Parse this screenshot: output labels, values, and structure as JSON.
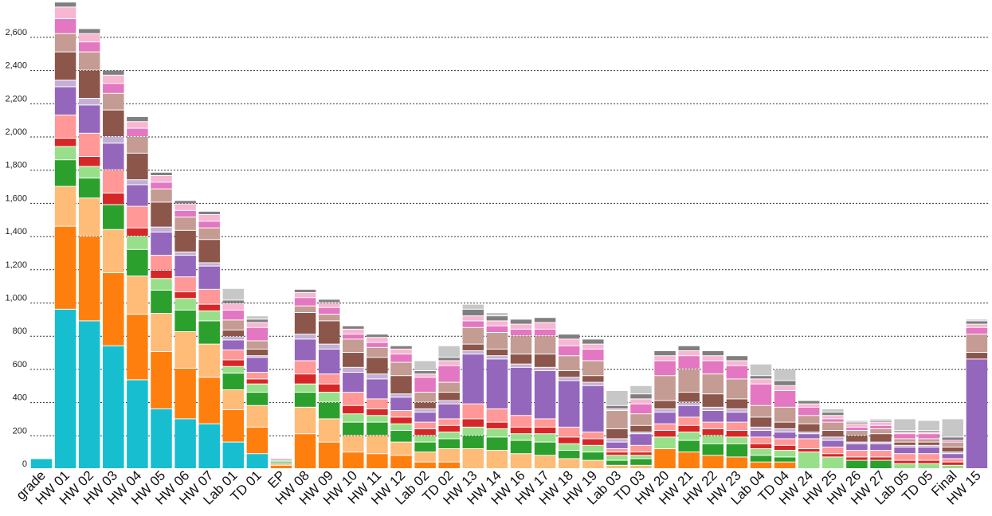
{
  "chart_data": {
    "type": "bar",
    "stacked": true,
    "title": "",
    "xlabel": "",
    "ylabel": "",
    "ylim": [
      0,
      2650
    ],
    "yticks": [
      0,
      200,
      400,
      600,
      800,
      1000,
      1200,
      1400,
      1600,
      1800,
      2000,
      2200,
      2400,
      2600
    ],
    "ytick_labels": [
      "0",
      "200",
      "400",
      "600",
      "800",
      "1,000",
      "1,200",
      "1,400",
      "1,600",
      "1,800",
      "2,000",
      "2,200",
      "2,400",
      "2,600"
    ],
    "grid": true,
    "legend": "none",
    "categories": [
      "grade",
      "HW 01",
      "HW 02",
      "HW 03",
      "HW 04",
      "HW 05",
      "HW 06",
      "HW 07",
      "Lab 01",
      "TD 01",
      "EP",
      "HW 08",
      "HW 09",
      "HW 10",
      "HW 11",
      "HW 12",
      "Lab 02",
      "TD 02",
      "HW 13",
      "HW 14",
      "HW 16",
      "HW 17",
      "HW 18",
      "HW 19",
      "Lab 03",
      "TD 03",
      "HW 20",
      "HW 21",
      "HW 22",
      "HW 23",
      "Lab 04",
      "TD 04",
      "HW 24",
      "HW 25",
      "HW 26",
      "HW 27",
      "Lab 05",
      "TD 05",
      "Final",
      "HW 15"
    ],
    "palette": [
      "#17becf",
      "#ff7f0e",
      "#ffbb78",
      "#2ca02c",
      "#98df8a",
      "#d62728",
      "#ff9896",
      "#9467bd",
      "#c5b0d5",
      "#8c564b",
      "#c49c94",
      "#e377c2",
      "#f7b6d2",
      "#7f7f7f",
      "#c7c7c7"
    ],
    "series_values": [
      [
        60,
        0,
        0,
        0,
        0,
        0,
        0,
        0,
        0,
        0,
        0,
        0,
        0,
        0,
        0
      ],
      [
        960,
        500,
        240,
        160,
        80,
        50,
        140,
        170,
        40,
        170,
        110,
        90,
        70,
        30,
        0
      ],
      [
        890,
        510,
        230,
        120,
        70,
        60,
        140,
        170,
        40,
        170,
        110,
        60,
        50,
        30,
        0
      ],
      [
        740,
        440,
        260,
        150,
        0,
        70,
        140,
        160,
        40,
        160,
        100,
        60,
        50,
        30,
        0
      ],
      [
        535,
        395,
        230,
        160,
        80,
        50,
        130,
        130,
        30,
        160,
        100,
        50,
        40,
        30,
        0
      ],
      [
        360,
        345,
        230,
        140,
        70,
        50,
        90,
        140,
        30,
        150,
        80,
        40,
        40,
        20,
        0
      ],
      [
        300,
        305,
        220,
        130,
        70,
        40,
        90,
        130,
        20,
        130,
        80,
        40,
        40,
        20,
        0
      ],
      [
        270,
        280,
        200,
        140,
        60,
        40,
        90,
        140,
        20,
        140,
        70,
        40,
        40,
        20,
        0
      ],
      [
        160,
        195,
        120,
        100,
        40,
        40,
        60,
        60,
        20,
        40,
        60,
        60,
        40,
        20,
        70
      ],
      [
        90,
        160,
        130,
        80,
        50,
        30,
        40,
        90,
        10,
        40,
        50,
        80,
        30,
        20,
        20
      ],
      [
        0,
        20,
        10,
        10,
        10,
        0,
        0,
        0,
        0,
        0,
        0,
        10,
        0,
        0,
        0
      ],
      [
        0,
        210,
        160,
        90,
        50,
        60,
        80,
        130,
        30,
        130,
        40,
        50,
        30,
        20,
        0
      ],
      [
        0,
        160,
        140,
        100,
        60,
        50,
        60,
        150,
        30,
        140,
        40,
        40,
        30,
        20,
        0
      ],
      [
        0,
        100,
        100,
        80,
        50,
        50,
        80,
        120,
        30,
        90,
        80,
        30,
        30,
        20,
        0
      ],
      [
        0,
        90,
        110,
        80,
        40,
        40,
        60,
        120,
        30,
        100,
        60,
        30,
        30,
        20,
        0
      ],
      [
        0,
        80,
        80,
        70,
        40,
        40,
        40,
        80,
        20,
        110,
        80,
        50,
        30,
        20,
        0
      ],
      [
        0,
        40,
        60,
        60,
        40,
        40,
        40,
        60,
        20,
        40,
        60,
        90,
        20,
        20,
        60
      ],
      [
        0,
        40,
        80,
        60,
        40,
        40,
        40,
        90,
        20,
        50,
        60,
        100,
        30,
        20,
        70
      ],
      [
        0,
        0,
        120,
        80,
        50,
        50,
        90,
        300,
        20,
        40,
        100,
        40,
        30,
        40,
        30
      ],
      [
        0,
        0,
        110,
        80,
        50,
        40,
        80,
        300,
        20,
        40,
        100,
        40,
        30,
        30,
        20
      ],
      [
        0,
        0,
        90,
        80,
        40,
        40,
        70,
        290,
        20,
        60,
        110,
        40,
        30,
        30,
        0
      ],
      [
        0,
        0,
        80,
        80,
        50,
        40,
        50,
        290,
        20,
        80,
        110,
        40,
        40,
        30,
        0
      ],
      [
        0,
        0,
        60,
        50,
        40,
        40,
        60,
        280,
        20,
        40,
        90,
        60,
        40,
        30,
        0
      ],
      [
        0,
        0,
        50,
        50,
        40,
        40,
        40,
        280,
        20,
        40,
        90,
        70,
        30,
        30,
        0
      ],
      [
        0,
        0,
        20,
        30,
        30,
        20,
        20,
        40,
        20,
        60,
        110,
        0,
        10,
        20,
        90
      ],
      [
        0,
        0,
        20,
        40,
        20,
        20,
        40,
        70,
        10,
        40,
        70,
        60,
        30,
        30,
        50
      ],
      [
        0,
        120,
        0,
        0,
        70,
        40,
        40,
        70,
        20,
        50,
        150,
        90,
        30,
        30,
        0
      ],
      [
        0,
        100,
        0,
        70,
        50,
        40,
        50,
        70,
        20,
        60,
        140,
        80,
        30,
        30,
        0
      ],
      [
        0,
        80,
        0,
        70,
        50,
        40,
        40,
        70,
        20,
        80,
        120,
        80,
        30,
        30,
        0
      ],
      [
        0,
        70,
        0,
        80,
        40,
        40,
        50,
        60,
        20,
        60,
        120,
        80,
        30,
        30,
        0
      ],
      [
        0,
        40,
        0,
        40,
        40,
        30,
        40,
        40,
        20,
        60,
        70,
        130,
        30,
        20,
        70
      ],
      [
        0,
        40,
        0,
        30,
        40,
        30,
        40,
        40,
        20,
        40,
        90,
        100,
        30,
        30,
        70
      ],
      [
        0,
        0,
        0,
        0,
        100,
        20,
        60,
        30,
        10,
        50,
        50,
        50,
        20,
        20,
        0
      ],
      [
        0,
        0,
        0,
        0,
        70,
        20,
        40,
        40,
        20,
        40,
        50,
        20,
        20,
        20,
        20
      ],
      [
        0,
        0,
        0,
        50,
        0,
        20,
        40,
        40,
        10,
        40,
        30,
        20,
        20,
        10,
        10
      ],
      [
        0,
        0,
        0,
        50,
        0,
        20,
        40,
        40,
        10,
        50,
        30,
        20,
        20,
        10,
        10
      ],
      [
        0,
        0,
        0,
        0,
        30,
        20,
        40,
        40,
        10,
        20,
        20,
        30,
        10,
        10,
        70
      ],
      [
        0,
        0,
        0,
        0,
        30,
        20,
        40,
        40,
        10,
        20,
        20,
        30,
        10,
        10,
        60
      ],
      [
        0,
        0,
        0,
        0,
        20,
        20,
        20,
        30,
        10,
        30,
        30,
        10,
        0,
        20,
        110
      ],
      [
        0,
        0,
        0,
        0,
        0,
        0,
        0,
        660,
        0,
        40,
        110,
        40,
        20,
        20,
        10
      ]
    ]
  }
}
